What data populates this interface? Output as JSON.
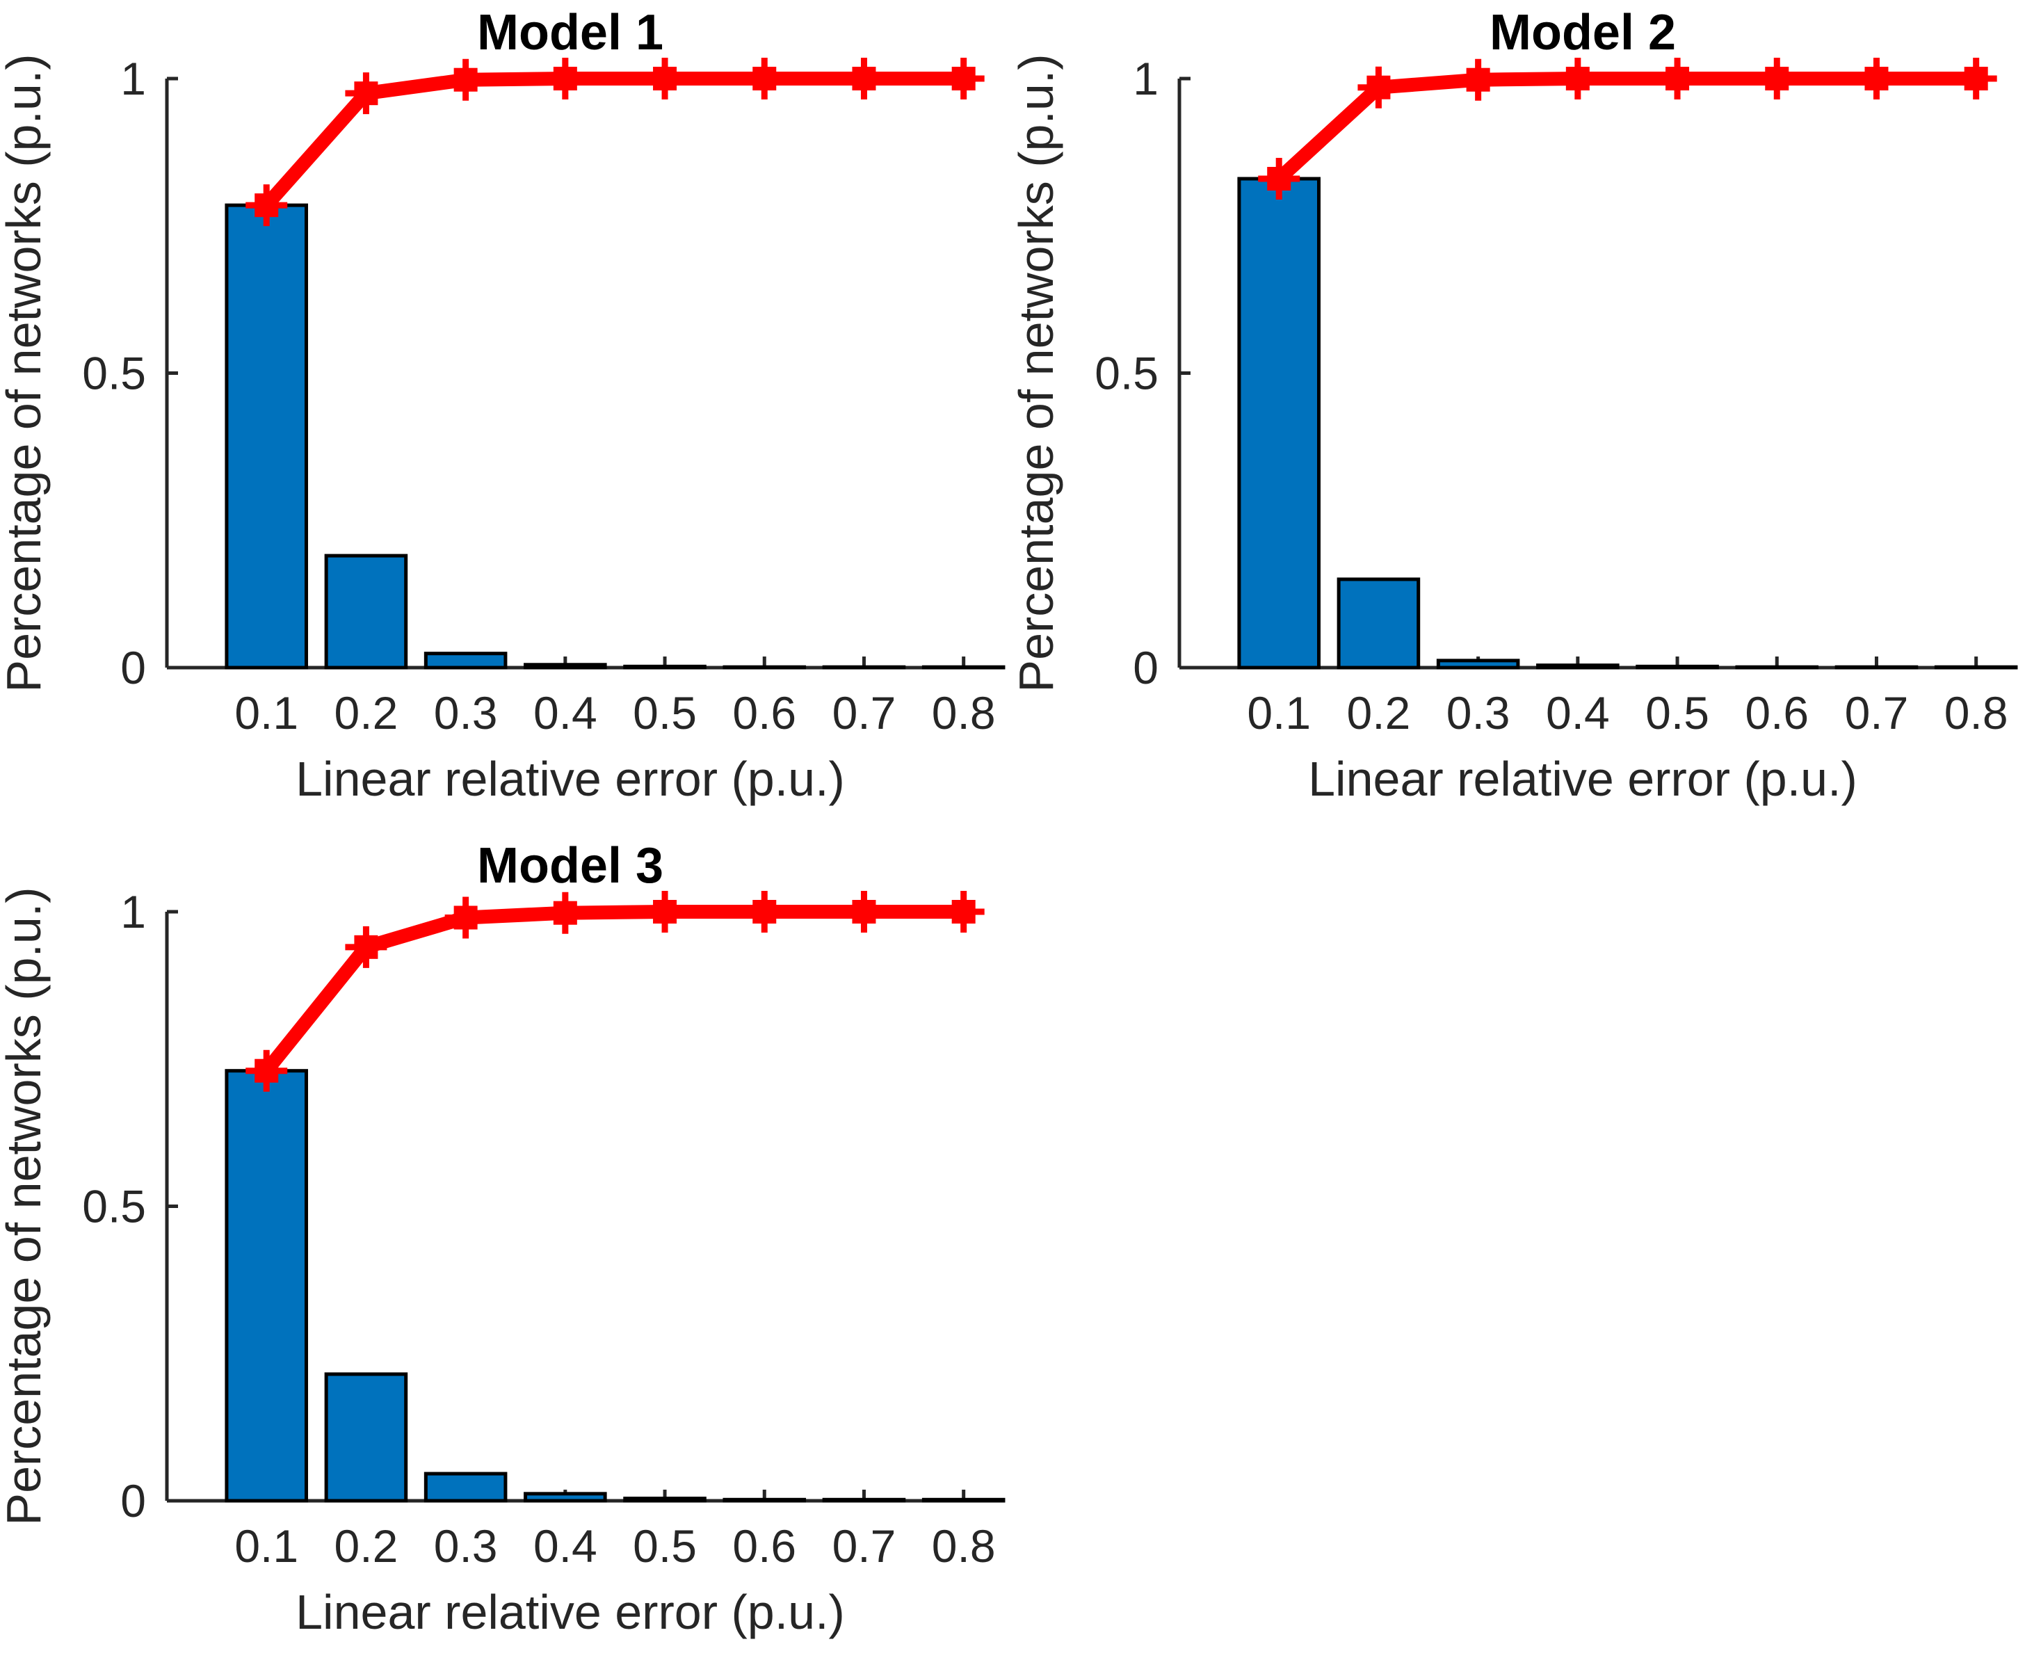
{
  "colors": {
    "background": "#FFFFFF",
    "bar_fill": "#0072BD",
    "bar_edge": "#000000",
    "line": "#FF0000",
    "axis": "#262626",
    "tick_label": "#262626",
    "title": "#000000"
  },
  "chart_data": [
    {
      "type": "bar",
      "title": "Model 1",
      "xlabel": "Linear relative error (p.u.)",
      "ylabel": "Percentage of networks (p.u.)",
      "categories": [
        0.1,
        0.2,
        0.3,
        0.4,
        0.5,
        0.6,
        0.7,
        0.8
      ],
      "xtick_labels": [
        "0.1",
        "0.2",
        "0.3",
        "0.4",
        "0.5",
        "0.6",
        "0.7",
        "0.8"
      ],
      "ytick_values": [
        0,
        0.5,
        1
      ],
      "ytick_labels": [
        "0",
        "0.5",
        "1"
      ],
      "xlim": [
        0,
        0.81
      ],
      "ylim": [
        0,
        1
      ],
      "bar_width": 0.08,
      "grid": "off",
      "legend": "off",
      "series": [
        {
          "name": "histogram",
          "type": "bar",
          "values": [
            0.785,
            0.19,
            0.024,
            0.005,
            0.002,
            0.001,
            0.001,
            0.001
          ]
        },
        {
          "name": "cumulative",
          "type": "line",
          "values": [
            0.785,
            0.975,
            0.998,
            1,
            1,
            1,
            1,
            1
          ]
        }
      ]
    },
    {
      "type": "bar",
      "title": "Model 2",
      "xlabel": "Linear relative error (p.u.)",
      "ylabel": "Percentage of networks (p.u.)",
      "categories": [
        0.1,
        0.2,
        0.3,
        0.4,
        0.5,
        0.6,
        0.7,
        0.8
      ],
      "xtick_labels": [
        "0.1",
        "0.2",
        "0.3",
        "0.4",
        "0.5",
        "0.6",
        "0.7",
        "0.8"
      ],
      "ytick_values": [
        0,
        0.5,
        1
      ],
      "ytick_labels": [
        "0",
        "0.5",
        "1"
      ],
      "xlim": [
        0,
        0.81
      ],
      "ylim": [
        0,
        1
      ],
      "bar_width": 0.08,
      "grid": "off",
      "legend": "off",
      "series": [
        {
          "name": "histogram",
          "type": "bar",
          "values": [
            0.83,
            0.15,
            0.012,
            0.004,
            0.002,
            0.001,
            0.001,
            0.001
          ]
        },
        {
          "name": "cumulative",
          "type": "line",
          "values": [
            0.83,
            0.985,
            0.998,
            1,
            1,
            1,
            1,
            1
          ]
        }
      ]
    },
    {
      "type": "bar",
      "title": "Model 3",
      "xlabel": "Linear relative error (p.u.)",
      "ylabel": "Percentage of networks (p.u.)",
      "categories": [
        0.1,
        0.2,
        0.3,
        0.4,
        0.5,
        0.6,
        0.7,
        0.8
      ],
      "xtick_labels": [
        "0.1",
        "0.2",
        "0.3",
        "0.4",
        "0.5",
        "0.6",
        "0.7",
        "0.8"
      ],
      "ytick_values": [
        0,
        0.5,
        1
      ],
      "ytick_labels": [
        "0",
        "0.5",
        "1"
      ],
      "xlim": [
        0,
        0.81
      ],
      "ylim": [
        0,
        1
      ],
      "bar_width": 0.08,
      "grid": "off",
      "legend": "off",
      "series": [
        {
          "name": "histogram",
          "type": "bar",
          "values": [
            0.73,
            0.215,
            0.046,
            0.012,
            0.004,
            0.002,
            0.002,
            0.002
          ]
        },
        {
          "name": "cumulative",
          "type": "line",
          "values": [
            0.73,
            0.94,
            0.99,
            0.998,
            1,
            1,
            1,
            1
          ]
        }
      ]
    }
  ]
}
